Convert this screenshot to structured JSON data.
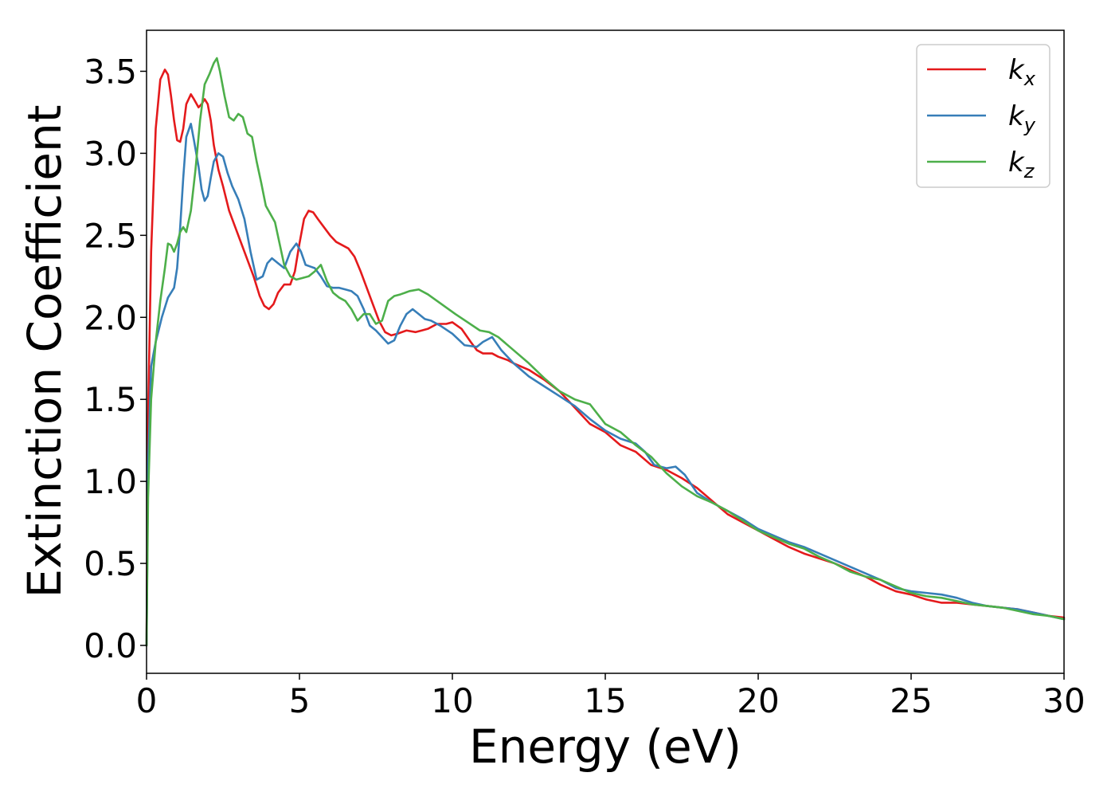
{
  "chart_data": {
    "type": "line",
    "title": "",
    "xlabel": "Energy (eV)",
    "ylabel": "Extinction Coefficient",
    "xlim": [
      0,
      30
    ],
    "ylim": [
      -0.17,
      3.75
    ],
    "xticks": [
      0,
      5,
      10,
      15,
      20,
      25,
      30
    ],
    "yticks": [
      0.0,
      0.5,
      1.0,
      1.5,
      2.0,
      2.5,
      3.0,
      3.5
    ],
    "xtick_labels": [
      "0",
      "5",
      "10",
      "15",
      "20",
      "25",
      "30"
    ],
    "ytick_labels": [
      "0.0",
      "0.5",
      "1.0",
      "1.5",
      "2.0",
      "2.5",
      "3.0",
      "3.5"
    ],
    "grid": false,
    "legend_position": "top-right",
    "series": [
      {
        "name": "k_x",
        "label_base": "k",
        "label_sub": "x",
        "color": "#e41a1c",
        "x": [
          0,
          0.05,
          0.15,
          0.3,
          0.45,
          0.6,
          0.7,
          0.8,
          0.9,
          1.0,
          1.1,
          1.2,
          1.3,
          1.45,
          1.55,
          1.7,
          1.8,
          1.9,
          2.0,
          2.1,
          2.2,
          2.35,
          2.5,
          2.7,
          2.9,
          3.1,
          3.3,
          3.5,
          3.7,
          3.85,
          4.0,
          4.15,
          4.3,
          4.5,
          4.7,
          4.85,
          5.0,
          5.15,
          5.3,
          5.45,
          5.6,
          5.8,
          6.0,
          6.2,
          6.4,
          6.6,
          6.8,
          7.0,
          7.2,
          7.4,
          7.6,
          7.8,
          8.0,
          8.2,
          8.5,
          8.8,
          9.0,
          9.2,
          9.5,
          9.8,
          10.0,
          10.3,
          10.6,
          10.8,
          11.0,
          11.3,
          11.5,
          11.8,
          12.0,
          12.5,
          13.0,
          13.5,
          14.0,
          14.5,
          15.0,
          15.5,
          16.0,
          16.5,
          17.0,
          17.5,
          18.0,
          18.5,
          19.0,
          19.5,
          20.0,
          20.5,
          21.0,
          21.5,
          22.0,
          22.5,
          23.0,
          23.5,
          24.0,
          24.5,
          25.0,
          25.5,
          26.0,
          26.5,
          27.0,
          27.5,
          28.0,
          28.5,
          29.0,
          29.5,
          30.0
        ],
        "y": [
          0.0,
          1.4,
          2.4,
          3.15,
          3.45,
          3.51,
          3.48,
          3.35,
          3.2,
          3.08,
          3.07,
          3.15,
          3.3,
          3.36,
          3.33,
          3.28,
          3.3,
          3.33,
          3.3,
          3.2,
          3.05,
          2.9,
          2.8,
          2.65,
          2.55,
          2.45,
          2.35,
          2.25,
          2.13,
          2.07,
          2.05,
          2.08,
          2.15,
          2.2,
          2.2,
          2.28,
          2.45,
          2.6,
          2.65,
          2.64,
          2.6,
          2.55,
          2.5,
          2.46,
          2.44,
          2.42,
          2.37,
          2.28,
          2.18,
          2.08,
          1.98,
          1.91,
          1.89,
          1.9,
          1.92,
          1.91,
          1.92,
          1.93,
          1.96,
          1.96,
          1.97,
          1.93,
          1.85,
          1.8,
          1.78,
          1.78,
          1.76,
          1.74,
          1.72,
          1.68,
          1.62,
          1.55,
          1.45,
          1.35,
          1.3,
          1.22,
          1.18,
          1.1,
          1.07,
          1.02,
          0.96,
          0.88,
          0.8,
          0.75,
          0.7,
          0.65,
          0.6,
          0.56,
          0.53,
          0.5,
          0.46,
          0.42,
          0.37,
          0.33,
          0.31,
          0.28,
          0.26,
          0.26,
          0.25,
          0.24,
          0.23,
          0.22,
          0.2,
          0.18,
          0.17
        ]
      },
      {
        "name": "k_y",
        "label_base": "k",
        "label_sub": "y",
        "color": "#377eb8",
        "x": [
          0,
          0.05,
          0.15,
          0.3,
          0.5,
          0.7,
          0.9,
          1.0,
          1.1,
          1.2,
          1.3,
          1.45,
          1.55,
          1.7,
          1.8,
          1.9,
          2.0,
          2.1,
          2.2,
          2.35,
          2.5,
          2.65,
          2.8,
          3.0,
          3.2,
          3.4,
          3.6,
          3.8,
          3.95,
          4.1,
          4.3,
          4.5,
          4.7,
          4.9,
          5.05,
          5.2,
          5.35,
          5.5,
          5.7,
          5.9,
          6.1,
          6.3,
          6.5,
          6.7,
          6.9,
          7.1,
          7.3,
          7.5,
          7.7,
          7.9,
          8.1,
          8.3,
          8.5,
          8.7,
          8.9,
          9.1,
          9.3,
          9.6,
          10.0,
          10.4,
          10.8,
          11.0,
          11.3,
          11.6,
          12.0,
          12.5,
          13.0,
          13.5,
          14.0,
          14.5,
          15.0,
          15.5,
          16.0,
          16.3,
          16.6,
          17.0,
          17.3,
          17.6,
          18.0,
          18.5,
          19.0,
          19.5,
          20.0,
          20.5,
          21.0,
          21.5,
          22.0,
          22.5,
          23.0,
          23.5,
          24.0,
          24.5,
          25.0,
          25.5,
          26.0,
          26.5,
          27.0,
          27.5,
          28.0,
          28.5,
          29.0,
          29.5,
          30.0
        ],
        "y": [
          0.0,
          1.1,
          1.7,
          1.85,
          2.0,
          2.12,
          2.18,
          2.3,
          2.55,
          2.85,
          3.1,
          3.18,
          3.08,
          2.92,
          2.78,
          2.71,
          2.74,
          2.85,
          2.95,
          3.0,
          2.98,
          2.88,
          2.8,
          2.72,
          2.6,
          2.4,
          2.23,
          2.25,
          2.33,
          2.36,
          2.33,
          2.3,
          2.4,
          2.45,
          2.4,
          2.32,
          2.31,
          2.3,
          2.25,
          2.19,
          2.18,
          2.18,
          2.17,
          2.16,
          2.13,
          2.05,
          1.95,
          1.92,
          1.88,
          1.84,
          1.86,
          1.95,
          2.02,
          2.05,
          2.02,
          1.99,
          1.98,
          1.95,
          1.9,
          1.83,
          1.82,
          1.85,
          1.88,
          1.8,
          1.72,
          1.64,
          1.58,
          1.52,
          1.46,
          1.38,
          1.31,
          1.26,
          1.23,
          1.18,
          1.1,
          1.08,
          1.09,
          1.04,
          0.93,
          0.87,
          0.82,
          0.77,
          0.71,
          0.67,
          0.63,
          0.6,
          0.56,
          0.52,
          0.48,
          0.44,
          0.4,
          0.35,
          0.33,
          0.32,
          0.31,
          0.29,
          0.26,
          0.24,
          0.23,
          0.22,
          0.2,
          0.18,
          0.16
        ]
      },
      {
        "name": "k_z",
        "label_base": "k",
        "label_sub": "z",
        "color": "#4daf4a",
        "x": [
          0,
          0.05,
          0.15,
          0.3,
          0.45,
          0.6,
          0.7,
          0.8,
          0.9,
          1.0,
          1.1,
          1.2,
          1.3,
          1.45,
          1.6,
          1.75,
          1.9,
          2.05,
          2.2,
          2.3,
          2.4,
          2.55,
          2.7,
          2.85,
          3.0,
          3.15,
          3.3,
          3.45,
          3.6,
          3.75,
          3.9,
          4.05,
          4.2,
          4.35,
          4.5,
          4.7,
          4.9,
          5.1,
          5.3,
          5.5,
          5.7,
          5.9,
          6.1,
          6.3,
          6.5,
          6.7,
          6.9,
          7.1,
          7.3,
          7.5,
          7.7,
          7.9,
          8.1,
          8.3,
          8.6,
          8.9,
          9.2,
          9.5,
          9.8,
          10.1,
          10.5,
          10.9,
          11.2,
          11.5,
          12.0,
          12.5,
          13.0,
          13.5,
          14.0,
          14.5,
          15.0,
          15.5,
          16.0,
          16.5,
          17.0,
          17.5,
          18.0,
          18.5,
          19.0,
          19.5,
          20.0,
          20.5,
          21.0,
          21.5,
          22.0,
          22.5,
          23.0,
          23.5,
          24.0,
          24.5,
          25.0,
          25.5,
          26.0,
          26.5,
          27.0,
          27.5,
          28.0,
          28.5,
          29.0,
          29.5,
          30.0
        ],
        "y": [
          0.0,
          0.9,
          1.5,
          1.85,
          2.1,
          2.3,
          2.45,
          2.44,
          2.4,
          2.45,
          2.52,
          2.55,
          2.52,
          2.65,
          2.9,
          3.2,
          3.42,
          3.48,
          3.55,
          3.58,
          3.5,
          3.35,
          3.22,
          3.2,
          3.24,
          3.22,
          3.12,
          3.1,
          2.95,
          2.82,
          2.68,
          2.63,
          2.58,
          2.45,
          2.32,
          2.25,
          2.23,
          2.24,
          2.25,
          2.28,
          2.32,
          2.22,
          2.15,
          2.12,
          2.1,
          2.05,
          1.98,
          2.02,
          2.02,
          1.96,
          1.98,
          2.1,
          2.13,
          2.14,
          2.16,
          2.17,
          2.14,
          2.1,
          2.06,
          2.02,
          1.97,
          1.92,
          1.91,
          1.88,
          1.8,
          1.72,
          1.63,
          1.55,
          1.5,
          1.47,
          1.35,
          1.3,
          1.22,
          1.15,
          1.05,
          0.97,
          0.91,
          0.87,
          0.82,
          0.76,
          0.7,
          0.66,
          0.62,
          0.59,
          0.54,
          0.5,
          0.45,
          0.42,
          0.4,
          0.36,
          0.32,
          0.3,
          0.29,
          0.27,
          0.25,
          0.24,
          0.23,
          0.21,
          0.19,
          0.18,
          0.16
        ]
      }
    ]
  }
}
